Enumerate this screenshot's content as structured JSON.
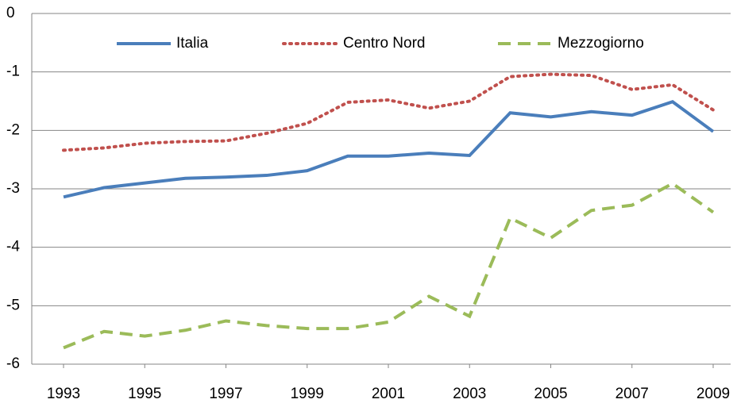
{
  "chart_data": {
    "type": "line",
    "x": [
      1993,
      1994,
      1995,
      1996,
      1997,
      1998,
      1999,
      2000,
      2001,
      2002,
      2003,
      2004,
      2005,
      2006,
      2007,
      2008,
      2009
    ],
    "xlim": [
      1993,
      2009
    ],
    "xticks": [
      1993,
      1995,
      1997,
      1999,
      2001,
      2003,
      2005,
      2007,
      2009
    ],
    "ylim": [
      -6,
      0
    ],
    "yticks": [
      -6,
      -5,
      -4,
      -3,
      -2,
      -1,
      0
    ],
    "grid": true,
    "legend": "top",
    "series": [
      {
        "name": "Italia",
        "color": "#4a7ebb",
        "style": "solid",
        "values": [
          -3.14,
          -2.98,
          -2.9,
          -2.82,
          -2.8,
          -2.77,
          -2.69,
          -2.44,
          -2.44,
          -2.39,
          -2.43,
          -1.7,
          -1.77,
          -1.68,
          -1.74,
          -1.51,
          -2.02
        ]
      },
      {
        "name": "Centro Nord",
        "color": "#c0504d",
        "style": "dotted",
        "values": [
          -2.34,
          -2.3,
          -2.22,
          -2.19,
          -2.18,
          -2.05,
          -1.88,
          -1.52,
          -1.48,
          -1.62,
          -1.5,
          -1.08,
          -1.04,
          -1.06,
          -1.3,
          -1.22,
          -1.65
        ]
      },
      {
        "name": "Mezzogiorno",
        "color": "#9bbb59",
        "style": "dashed",
        "values": [
          -5.72,
          -5.44,
          -5.52,
          -5.42,
          -5.26,
          -5.34,
          -5.39,
          -5.39,
          -5.28,
          -4.84,
          -5.18,
          -3.5,
          -3.84,
          -3.37,
          -3.28,
          -2.91,
          -3.4
        ]
      }
    ]
  }
}
